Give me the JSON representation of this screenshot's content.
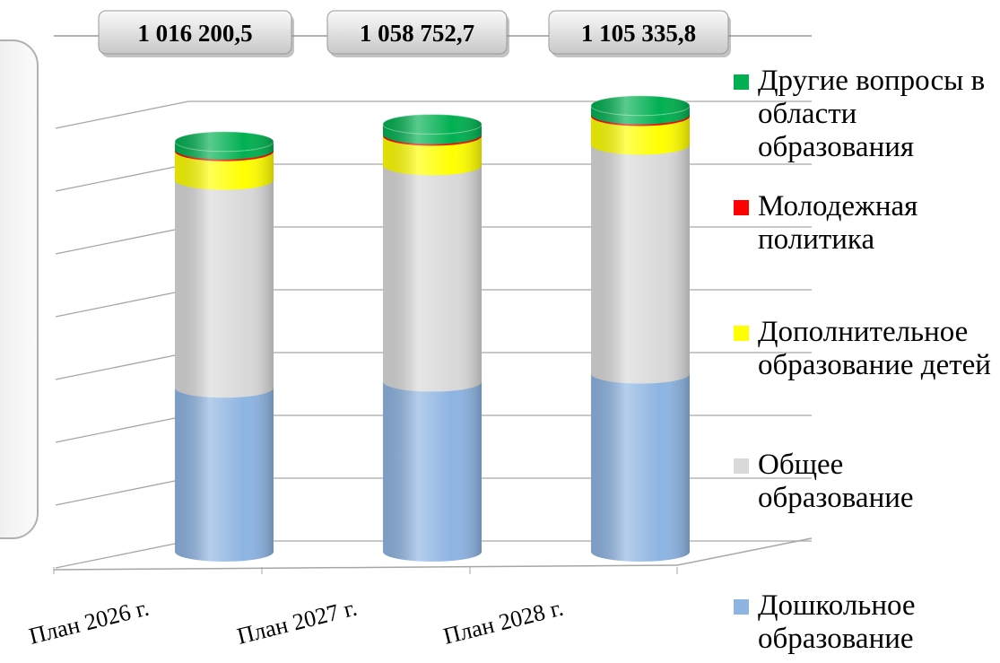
{
  "chart_data": {
    "type": "stacked-cylinder",
    "categories": [
      "План 2026 г.",
      "План 2027 г.",
      "План 2028 г."
    ],
    "total_labels": [
      "1 016 200,5",
      "1 058 752,7",
      "1 105 335,8"
    ],
    "series": [
      {
        "name": "Дошкольное образование",
        "color": "#8db4e2",
        "values": [
          406000,
          421000,
          441000
        ]
      },
      {
        "name": "Общее образование",
        "color": "#d9d9d9",
        "values": [
          515000,
          536000,
          567000
        ]
      },
      {
        "name": "Дополнительное образование детей",
        "color": "#ffff00",
        "values": [
          71000,
          73000,
          71000
        ]
      },
      {
        "name": "Молодежная политика",
        "color": "#ff0000",
        "values": [
          4000,
          4000,
          4000
        ]
      },
      {
        "name": "Другие вопросы в области образования",
        "color": "#00b050",
        "values": [
          20000,
          25000,
          22000
        ]
      }
    ],
    "ylim": [
      0,
      1200000
    ]
  }
}
